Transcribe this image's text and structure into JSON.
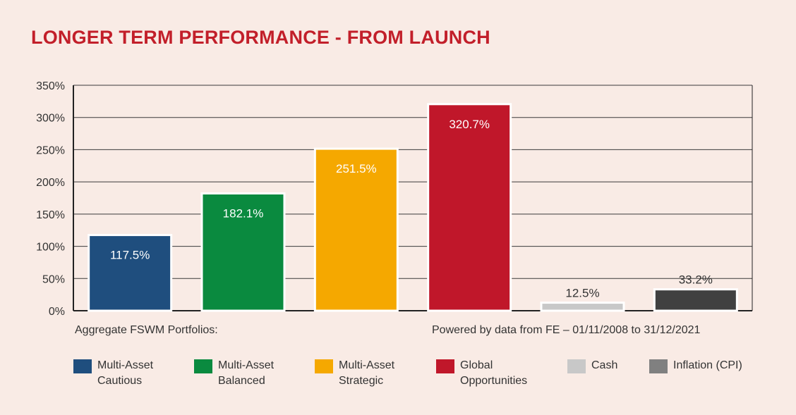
{
  "title": "LONGER TERM PERFORMANCE - FROM LAUNCH",
  "footnote_left": "Aggregate FSWM Portfolios:",
  "footnote_right": "Powered by data from FE – 01/11/2008 to 31/12/2021",
  "colors": {
    "title": "#c21f2a",
    "background": "#f9ebe5"
  },
  "chart_data": {
    "type": "bar",
    "title": "",
    "xlabel": "",
    "ylabel": "",
    "ylim": [
      0,
      350
    ],
    "yticks": [
      0,
      50,
      100,
      150,
      200,
      250,
      300,
      350
    ],
    "ytick_labels": [
      "0%",
      "50%",
      "100%",
      "150%",
      "200%",
      "250%",
      "300%",
      "350%"
    ],
    "grid": true,
    "legend_position": "bottom",
    "bars": [
      {
        "label": "Multi-Asset Cautious",
        "value": 117.5,
        "value_label": "117.5%",
        "color": "#1f4e7e",
        "label_inside": true
      },
      {
        "label": "Multi-Asset Balanced",
        "value": 182.1,
        "value_label": "182.1%",
        "color": "#0a8a3f",
        "label_inside": true
      },
      {
        "label": "Multi-Asset Strategic",
        "value": 251.5,
        "value_label": "251.5%",
        "color": "#f5a800",
        "label_inside": true
      },
      {
        "label": "Global Opportunities",
        "value": 320.7,
        "value_label": "320.7%",
        "color": "#c0172a",
        "label_inside": true
      },
      {
        "label": "Cash",
        "value": 12.5,
        "value_label": "12.5%",
        "color": "#c8c8c8",
        "label_inside": false
      },
      {
        "label": "Inflation (CPI)",
        "value": 33.2,
        "value_label": "33.2%",
        "color": "#404040",
        "label_inside": false
      }
    ]
  },
  "legend": [
    {
      "line1": "Multi-Asset",
      "line2": "Cautious",
      "color": "#1f4e7e"
    },
    {
      "line1": "Multi-Asset",
      "line2": "Balanced",
      "color": "#0a8a3f"
    },
    {
      "line1": "Multi-Asset",
      "line2": "Strategic",
      "color": "#f5a800"
    },
    {
      "line1": "Global",
      "line2": "Opportunities",
      "color": "#c0172a"
    },
    {
      "line1": "Cash",
      "line2": "",
      "color": "#c8c8c8"
    },
    {
      "line1": "Inflation (CPI)",
      "line2": "",
      "color": "#808080"
    }
  ]
}
